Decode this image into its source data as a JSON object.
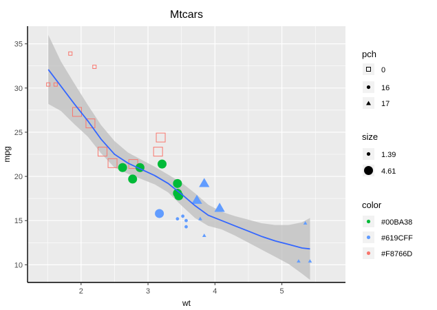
{
  "chart_data": {
    "type": "scatter",
    "title": "Mtcars",
    "xlabel": "wt",
    "ylabel": "mpg",
    "xlim": [
      1.2,
      5.95
    ],
    "ylim": [
      8.0,
      37.0
    ],
    "x_ticks": [
      2,
      3,
      4,
      5
    ],
    "y_ticks": [
      10,
      15,
      20,
      25,
      30,
      35
    ],
    "grid": true,
    "legend_position": "right",
    "colors": {
      "green": "#00BA38",
      "blue": "#619CFF",
      "red": "#F8766D",
      "smooth_line": "#3366FF",
      "ribbon": "#BDBDBD",
      "panel": "#EBEBEB"
    },
    "points": [
      {
        "wt": 1.51,
        "mpg": 30.4,
        "color": "#F8766D",
        "pch": "0",
        "size": 1.39
      },
      {
        "wt": 1.62,
        "mpg": 30.4,
        "color": "#F8766D",
        "pch": "0",
        "size": 1.39
      },
      {
        "wt": 1.84,
        "mpg": 33.9,
        "color": "#F8766D",
        "pch": "0",
        "size": 1.39
      },
      {
        "wt": 2.2,
        "mpg": 32.4,
        "color": "#F8766D",
        "pch": "0",
        "size": 1.39
      },
      {
        "wt": 1.94,
        "mpg": 27.3,
        "color": "#F8766D",
        "pch": "0",
        "size": 4.61
      },
      {
        "wt": 2.14,
        "mpg": 26.0,
        "color": "#F8766D",
        "pch": "0",
        "size": 4.61
      },
      {
        "wt": 2.32,
        "mpg": 22.8,
        "color": "#F8766D",
        "pch": "0",
        "size": 4.61
      },
      {
        "wt": 2.47,
        "mpg": 21.5,
        "color": "#F8766D",
        "pch": "0",
        "size": 4.61
      },
      {
        "wt": 2.78,
        "mpg": 21.4,
        "color": "#F8766D",
        "pch": "0",
        "size": 4.61
      },
      {
        "wt": 3.15,
        "mpg": 22.8,
        "color": "#F8766D",
        "pch": "0",
        "size": 4.61
      },
      {
        "wt": 3.19,
        "mpg": 24.4,
        "color": "#F8766D",
        "pch": "0",
        "size": 4.61
      },
      {
        "wt": 2.62,
        "mpg": 21.0,
        "color": "#00BA38",
        "pch": "16",
        "size": 4.61
      },
      {
        "wt": 2.77,
        "mpg": 19.7,
        "color": "#00BA38",
        "pch": "16",
        "size": 4.61
      },
      {
        "wt": 2.88,
        "mpg": 21.0,
        "color": "#00BA38",
        "pch": "16",
        "size": 4.61
      },
      {
        "wt": 3.21,
        "mpg": 21.4,
        "color": "#00BA38",
        "pch": "16",
        "size": 4.61
      },
      {
        "wt": 3.44,
        "mpg": 19.2,
        "color": "#00BA38",
        "pch": "16",
        "size": 4.61
      },
      {
        "wt": 3.44,
        "mpg": 18.1,
        "color": "#00BA38",
        "pch": "16",
        "size": 4.61
      },
      {
        "wt": 3.46,
        "mpg": 17.8,
        "color": "#00BA38",
        "pch": "16",
        "size": 4.61
      },
      {
        "wt": 3.17,
        "mpg": 15.8,
        "color": "#619CFF",
        "pch": "16",
        "size": 4.61
      },
      {
        "wt": 3.44,
        "mpg": 15.2,
        "color": "#619CFF",
        "pch": "16",
        "size": 1.39
      },
      {
        "wt": 3.52,
        "mpg": 15.5,
        "color": "#619CFF",
        "pch": "16",
        "size": 1.39
      },
      {
        "wt": 3.57,
        "mpg": 15.0,
        "color": "#619CFF",
        "pch": "16",
        "size": 1.39
      },
      {
        "wt": 3.57,
        "mpg": 14.3,
        "color": "#619CFF",
        "pch": "16",
        "size": 1.39
      },
      {
        "wt": 3.73,
        "mpg": 17.3,
        "color": "#619CFF",
        "pch": "17",
        "size": 4.61
      },
      {
        "wt": 3.84,
        "mpg": 19.2,
        "color": "#619CFF",
        "pch": "17",
        "size": 4.61
      },
      {
        "wt": 4.07,
        "mpg": 16.4,
        "color": "#619CFF",
        "pch": "17",
        "size": 4.61
      },
      {
        "wt": 3.78,
        "mpg": 15.2,
        "color": "#619CFF",
        "pch": "17",
        "size": 1.39
      },
      {
        "wt": 3.84,
        "mpg": 13.3,
        "color": "#619CFF",
        "pch": "17",
        "size": 1.39
      },
      {
        "wt": 5.25,
        "mpg": 10.4,
        "color": "#619CFF",
        "pch": "17",
        "size": 1.39
      },
      {
        "wt": 5.35,
        "mpg": 14.7,
        "color": "#619CFF",
        "pch": "17",
        "size": 1.39
      },
      {
        "wt": 5.42,
        "mpg": 10.4,
        "color": "#619CFF",
        "pch": "17",
        "size": 1.39
      }
    ],
    "smooth": {
      "method": "loess",
      "x": [
        1.51,
        1.7,
        1.9,
        2.1,
        2.3,
        2.5,
        2.7,
        2.9,
        3.1,
        3.3,
        3.5,
        3.7,
        3.9,
        4.1,
        4.3,
        4.5,
        4.7,
        4.9,
        5.1,
        5.3,
        5.42
      ],
      "y": [
        32.1,
        30.2,
        28.2,
        26.3,
        24.2,
        22.5,
        21.5,
        20.8,
        20.1,
        19.2,
        18.0,
        16.7,
        15.6,
        15.0,
        14.4,
        13.8,
        13.2,
        12.7,
        12.3,
        11.9,
        11.8
      ],
      "lower": [
        28.2,
        27.4,
        25.9,
        24.5,
        22.6,
        21.0,
        20.3,
        19.7,
        19.1,
        18.2,
        16.7,
        15.3,
        14.4,
        14.0,
        13.3,
        12.5,
        11.7,
        10.9,
        10.1,
        9.0,
        8.3
      ],
      "upper": [
        36.0,
        33.0,
        30.5,
        28.1,
        25.8,
        24.0,
        22.7,
        21.9,
        21.1,
        20.2,
        19.3,
        18.1,
        16.8,
        16.0,
        15.5,
        15.1,
        14.7,
        14.5,
        14.5,
        14.8,
        15.3
      ]
    },
    "legend": {
      "pch": {
        "title": "pch",
        "items": [
          "0",
          "16",
          "17"
        ]
      },
      "size": {
        "title": "size",
        "items": [
          "1.39",
          "4.61"
        ]
      },
      "color": {
        "title": "color",
        "items": [
          "#00BA38",
          "#619CFF",
          "#F8766D"
        ]
      }
    }
  }
}
